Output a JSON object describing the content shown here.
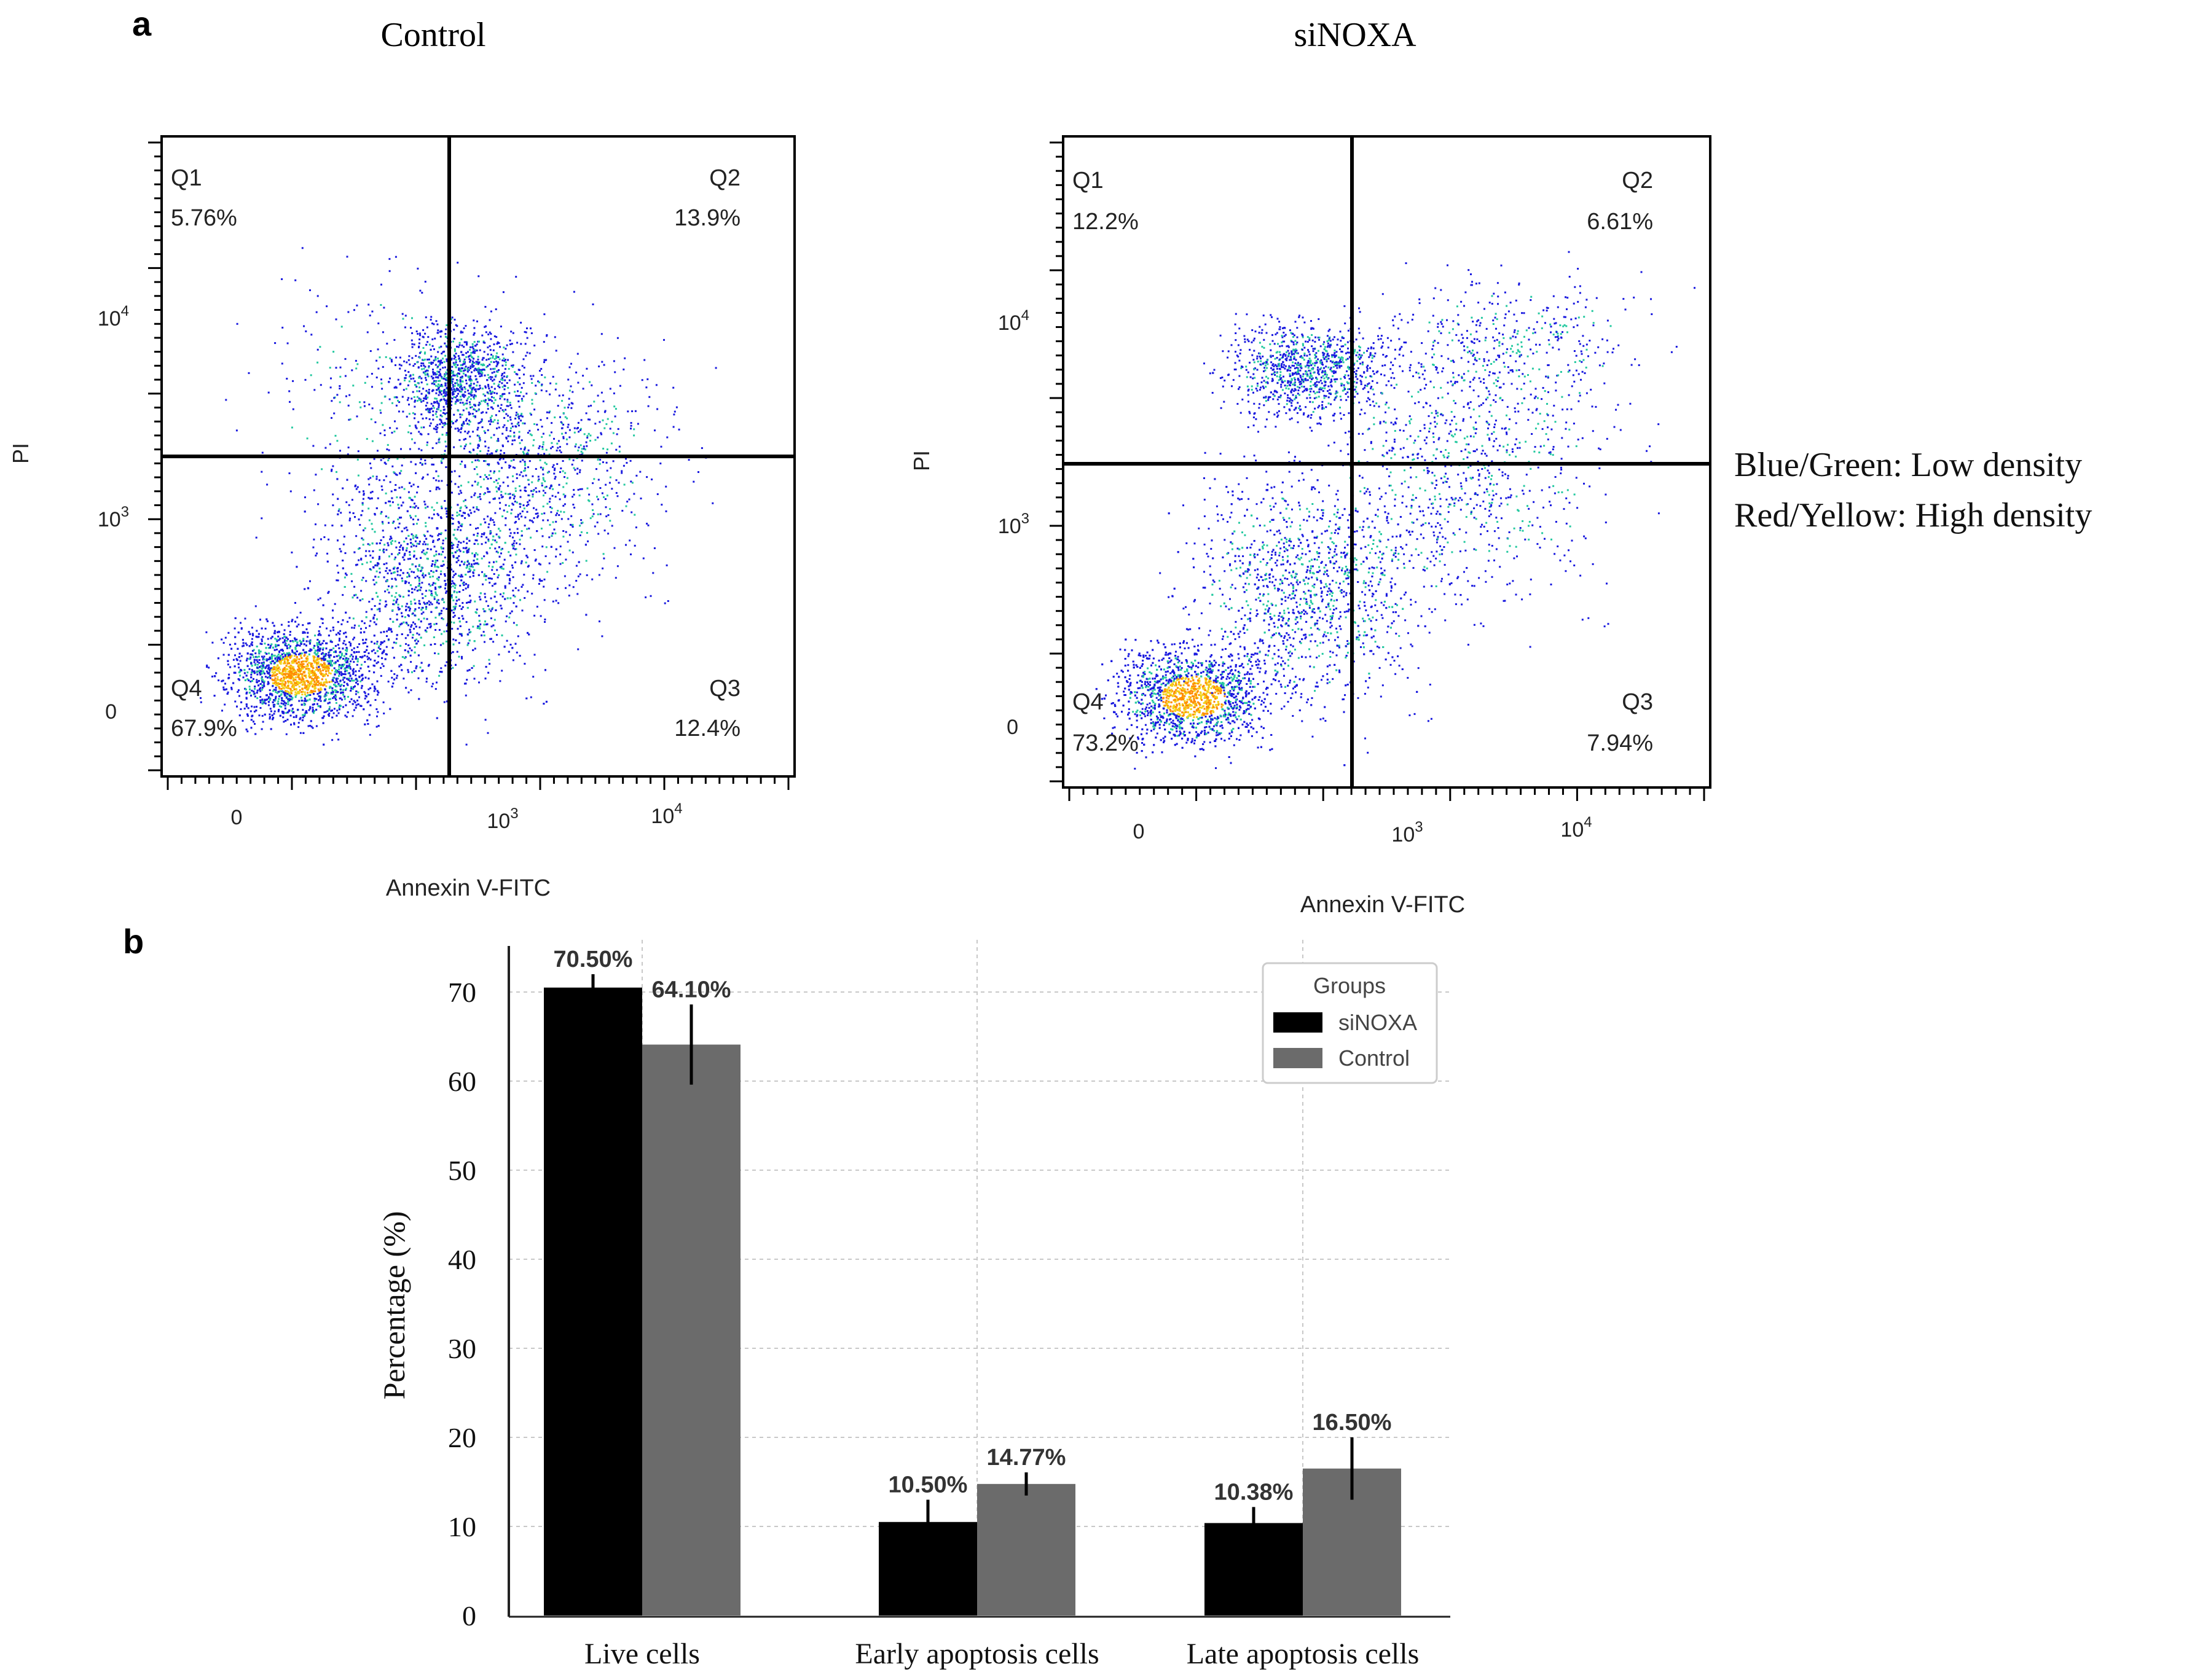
{
  "panel_labels": {
    "a": "a",
    "b": "b"
  },
  "flow_panels": [
    {
      "title": "Control",
      "xlabel": "Annexin V-FITC",
      "ylabel": "PI",
      "quadrants": [
        {
          "name": "Q1",
          "value": "5.76%"
        },
        {
          "name": "Q2",
          "value": "13.9%"
        },
        {
          "name": "Q3",
          "value": "12.4%"
        },
        {
          "name": "Q4",
          "value": "67.9%"
        }
      ],
      "x_ticks": [
        "0",
        "10",
        "10"
      ],
      "x_tick_exp": [
        "",
        "3",
        "4"
      ],
      "y_ticks": [
        "0",
        "10",
        "10"
      ],
      "y_tick_exp": [
        "",
        "3",
        "4"
      ]
    },
    {
      "title": "siNOXA",
      "xlabel": "Annexin V-FITC",
      "ylabel": "PI",
      "quadrants": [
        {
          "name": "Q1",
          "value": "12.2%"
        },
        {
          "name": "Q2",
          "value": "6.61%"
        },
        {
          "name": "Q3",
          "value": "7.94%"
        },
        {
          "name": "Q4",
          "value": "73.2%"
        }
      ],
      "x_ticks": [
        "0",
        "10",
        "10"
      ],
      "x_tick_exp": [
        "",
        "3",
        "4"
      ],
      "y_ticks": [
        "0",
        "10",
        "10"
      ],
      "y_tick_exp": [
        "",
        "3",
        "4"
      ]
    }
  ],
  "density_legend": [
    "Blue/Green: Low density",
    "Red/Yellow: High density"
  ],
  "colors": {
    "siNOXA": "#000000",
    "Control": "#6b6b6b",
    "low_density": "#1a1adf",
    "high_density": "#ff8c00"
  },
  "chart_data": {
    "type": "bar",
    "categories": [
      "Live cells",
      "Early apoptosis cells",
      "Late apoptosis cells"
    ],
    "ylabel": "Percentage (%)",
    "xlabel": "",
    "ylim": [
      0,
      75
    ],
    "yticks": [
      0,
      10,
      20,
      30,
      40,
      50,
      60,
      70
    ],
    "grid": true,
    "legend": {
      "title": "Groups",
      "position": "top-right"
    },
    "series": [
      {
        "name": "siNOXA",
        "values": [
          70.5,
          10.5,
          10.38
        ],
        "errors": [
          1.5,
          2.5,
          1.8
        ],
        "labels": [
          "70.50%",
          "10.50%",
          "10.38%"
        ]
      },
      {
        "name": "Control",
        "values": [
          64.1,
          14.77,
          16.5
        ],
        "errors": [
          4.5,
          1.3,
          3.5
        ],
        "labels": [
          "64.10%",
          "14.77%",
          "16.50%"
        ]
      }
    ]
  }
}
